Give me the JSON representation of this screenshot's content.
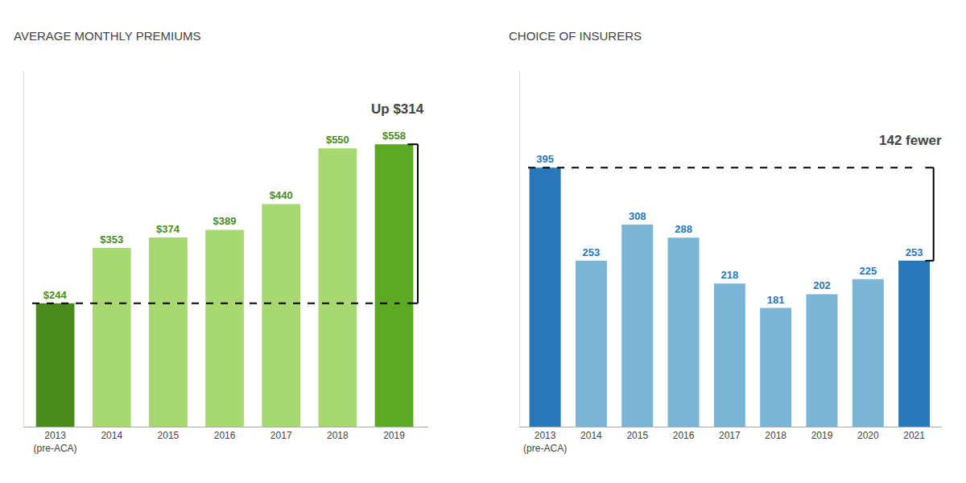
{
  "chart_data": [
    {
      "type": "bar",
      "title": "AVERAGE MONTHLY PREMIUMS",
      "categories": [
        "2013\n(pre-ACA)",
        "2014",
        "2015",
        "2016",
        "2017",
        "2018",
        "2019"
      ],
      "values": [
        244,
        353,
        374,
        389,
        440,
        550,
        558
      ],
      "value_labels": [
        "$244",
        "$353",
        "$374",
        "$389",
        "$440",
        "$550",
        "$558"
      ],
      "colors": [
        "#4a8c1c",
        "#a8d870",
        "#a8d870",
        "#a8d870",
        "#a8d870",
        "#a8d870",
        "#5aaa22"
      ],
      "label_color": "#4a8c1c",
      "data_labels": true,
      "reference_value": 244,
      "annotation": "Up $314",
      "ylim": [
        0,
        700
      ],
      "tick_labels": "x",
      "grid": false
    },
    {
      "type": "bar",
      "title": "CHOICE OF INSURERS",
      "categories": [
        "2013\n(pre-ACA)",
        "2014",
        "2015",
        "2016",
        "2017",
        "2018",
        "2019",
        "2020",
        "2021"
      ],
      "values": [
        395,
        253,
        308,
        288,
        218,
        181,
        202,
        225,
        253
      ],
      "colors": [
        "#2877b8",
        "#7ab5d8",
        "#7ab5d8",
        "#7ab5d8",
        "#7ab5d8",
        "#7ab5d8",
        "#7ab5d8",
        "#7ab5d8",
        "#2877b8"
      ],
      "label_color": "#2877b8",
      "data_labels": true,
      "reference_value": 395,
      "annotation": "142 fewer",
      "ylim": [
        0,
        540
      ],
      "tick_labels": "x",
      "grid": false
    }
  ]
}
